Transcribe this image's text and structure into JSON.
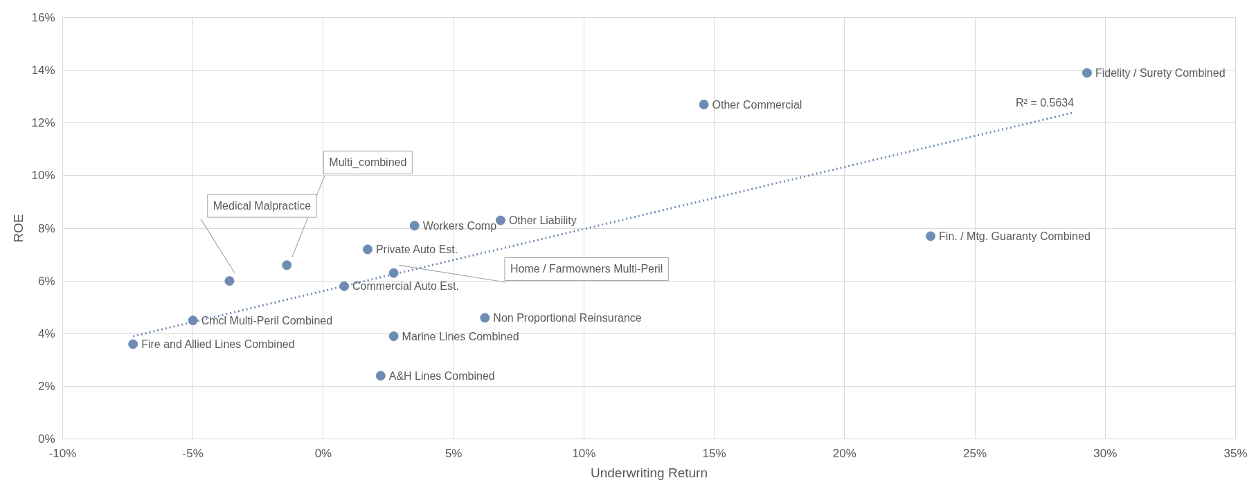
{
  "chart_data": {
    "type": "scatter",
    "xlabel": "Underwriting Return",
    "ylabel": "ROE",
    "xlim": [
      -10,
      35
    ],
    "ylim": [
      0,
      16
    ],
    "xticks": [
      {
        "value": -10,
        "label": "-10%"
      },
      {
        "value": -5,
        "label": "-5%"
      },
      {
        "value": 0,
        "label": "0%"
      },
      {
        "value": 5,
        "label": "5%"
      },
      {
        "value": 10,
        "label": "10%"
      },
      {
        "value": 15,
        "label": "15%"
      },
      {
        "value": 20,
        "label": "20%"
      },
      {
        "value": 25,
        "label": "25%"
      },
      {
        "value": 30,
        "label": "30%"
      },
      {
        "value": 35,
        "label": "35%"
      }
    ],
    "yticks": [
      {
        "value": 0,
        "label": "0%"
      },
      {
        "value": 2,
        "label": "2%"
      },
      {
        "value": 4,
        "label": "4%"
      },
      {
        "value": 6,
        "label": "6%"
      },
      {
        "value": 8,
        "label": "8%"
      },
      {
        "value": 10,
        "label": "10%"
      },
      {
        "value": 12,
        "label": "12%"
      },
      {
        "value": 14,
        "label": "14%"
      },
      {
        "value": 16,
        "label": "16%"
      }
    ],
    "grid": true,
    "series": [
      {
        "marker": "circle",
        "color": "#6e8cb3",
        "x": [
          -7.3,
          -5.0,
          -3.6,
          -1.4,
          0.8,
          1.7,
          2.2,
          2.7,
          2.7,
          3.5,
          6.2,
          6.8,
          14.6,
          23.3,
          29.3
        ],
        "values": [
          3.6,
          4.5,
          6.0,
          6.6,
          5.8,
          7.2,
          2.4,
          6.3,
          3.9,
          8.1,
          4.6,
          8.3,
          12.7,
          7.7,
          13.9
        ],
        "value_labels": [
          "Fire and Allied Lines Combined",
          "Cmcl Multi-Peril Combined",
          "Medical Malpractice",
          "Multi_combined",
          "Commercial Auto Est.",
          "Private Auto Est.",
          "A&H Lines Combined",
          "Home / Farmowners Multi-Peril",
          "Marine Lines Combined",
          "Workers Comp",
          "Non Proportional Reinsurance",
          "Other Liability",
          "Other Commercial",
          "Fin. / Mtg. Guaranty Combined",
          "Fidelity / Surety Combined"
        ]
      },
      {
        "type": "line",
        "color": "#6e8cb3",
        "line_style": "dotted",
        "x": [
          -7.3,
          28.8
        ],
        "values": [
          3.9,
          12.4
        ]
      }
    ],
    "annotations": [
      {
        "text": "R² = 0.5634",
        "x": 28.8,
        "y": 12.4
      }
    ]
  }
}
